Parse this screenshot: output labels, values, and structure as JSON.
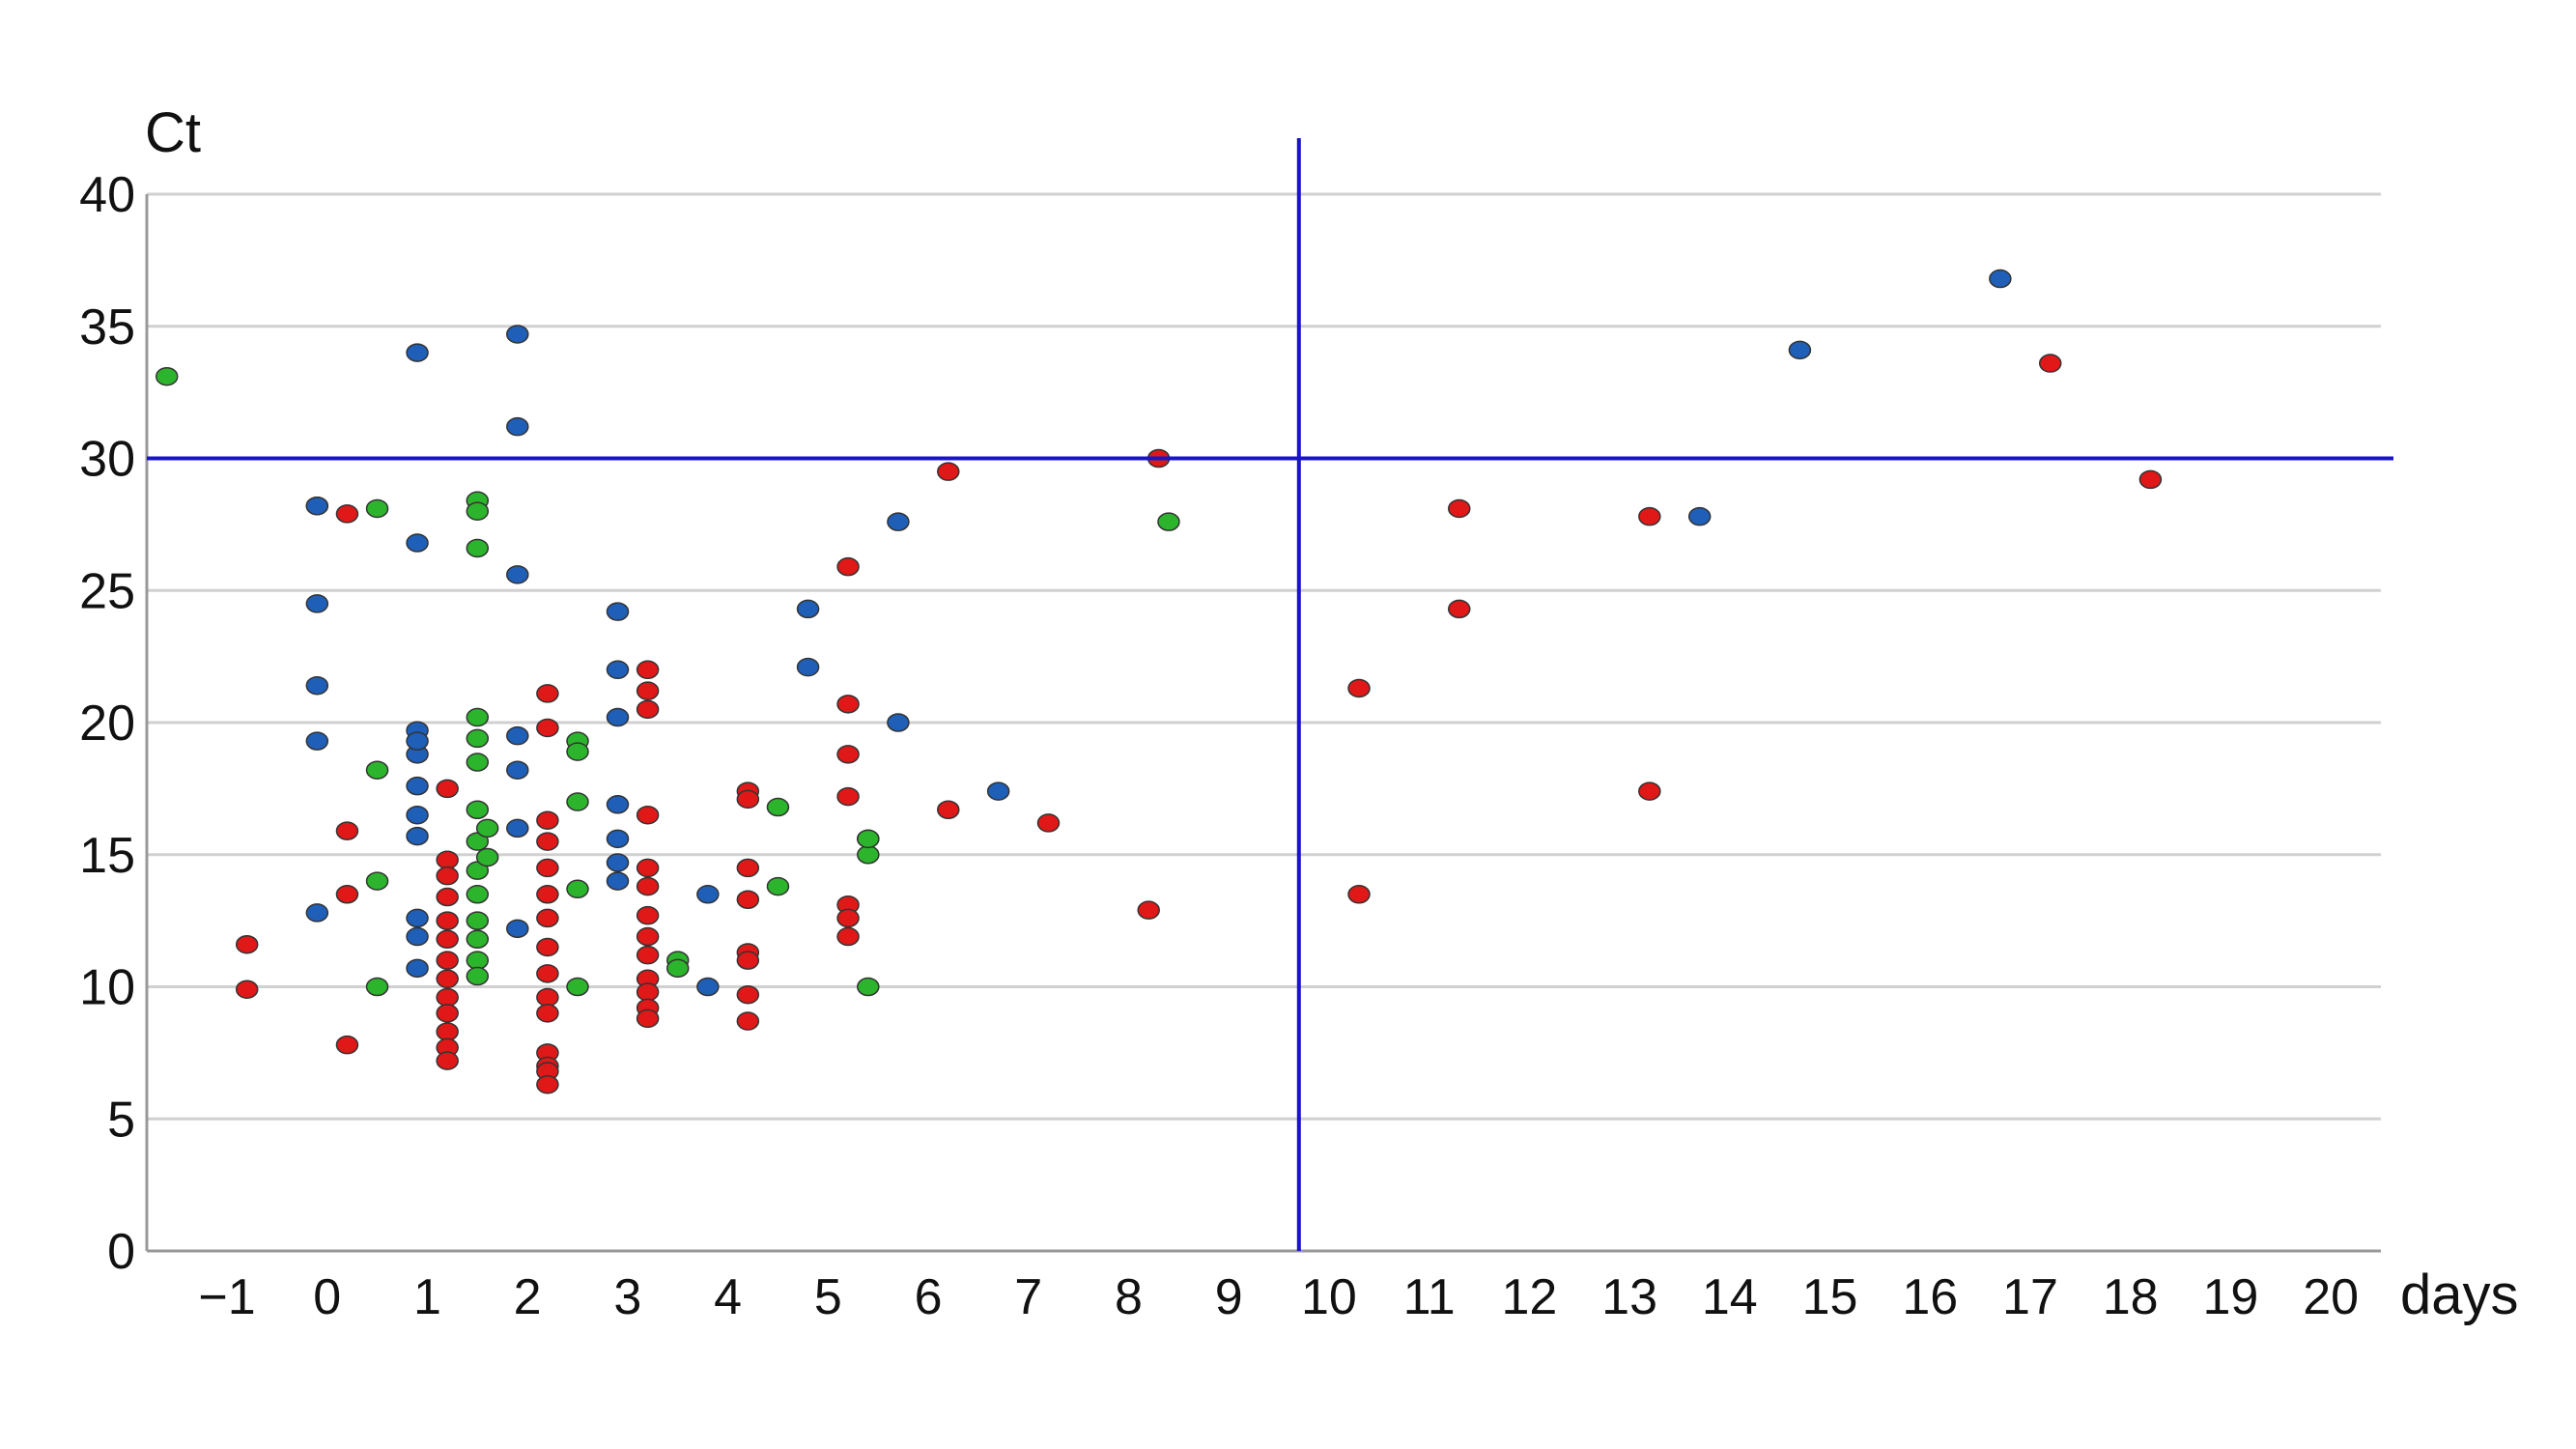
{
  "chart_data": {
    "type": "scatter",
    "title": "",
    "ylabel": "Ct",
    "xlabel": "days",
    "xlim": [
      -1.8,
      20.5
    ],
    "ylim": [
      0,
      40
    ],
    "grid": true,
    "x_ticks": [
      -1,
      0,
      1,
      2,
      3,
      4,
      5,
      6,
      7,
      8,
      9,
      10,
      11,
      12,
      13,
      14,
      15,
      16,
      17,
      18,
      19,
      20
    ],
    "y_ticks": [
      0,
      5,
      10,
      15,
      20,
      25,
      30,
      35,
      40
    ],
    "reference_lines": {
      "horizontal_y": 30,
      "vertical_x": 9.7,
      "color": "#1a14c8"
    },
    "colors": {
      "blue": "#1f5fb8",
      "red": "#e01818",
      "green": "#2cb52c",
      "grid": "#d0d0d0",
      "axis": "#999999"
    },
    "series": [
      {
        "color": "#1f5fb8",
        "x": [
          -0.1,
          -0.1,
          -0.1,
          -0.1,
          -0.1,
          -0.1,
          0.9,
          0.9,
          0.9,
          0.9,
          0.9,
          0.9,
          0.9,
          0.9,
          0.9,
          0.9,
          0.9,
          1.9,
          1.9,
          1.9,
          1.9,
          1.9,
          1.9,
          1.9,
          2.9,
          2.9,
          2.9,
          2.9,
          2.9,
          2.9,
          2.9,
          3.8,
          3.8,
          4.8,
          4.8,
          5.7,
          5.7,
          6.7,
          13.7,
          14.7,
          16.7
        ],
        "y": [
          28.2,
          24.5,
          21.4,
          19.3,
          12.8,
          28.2,
          34.0,
          26.8,
          19.7,
          18.8,
          17.6,
          16.5,
          15.7,
          12.6,
          11.9,
          10.7,
          19.3,
          34.7,
          31.2,
          25.6,
          19.5,
          18.2,
          16.0,
          12.2,
          24.2,
          22.0,
          20.2,
          16.9,
          15.6,
          14.7,
          14.0,
          13.5,
          10.0,
          24.3,
          22.1,
          27.6,
          20.0,
          17.4,
          27.8,
          34.1,
          36.8
        ]
      },
      {
        "color": "#e01818",
        "x": [
          -0.8,
          -0.8,
          0.2,
          0.2,
          0.2,
          0.2,
          1.2,
          1.2,
          1.2,
          1.2,
          1.2,
          1.2,
          1.2,
          1.2,
          1.2,
          1.2,
          1.2,
          1.2,
          1.2,
          2.2,
          2.2,
          2.2,
          2.2,
          2.2,
          2.2,
          2.2,
          2.2,
          2.2,
          2.2,
          2.2,
          2.2,
          2.2,
          2.2,
          2.2,
          3.2,
          3.2,
          3.2,
          3.2,
          3.2,
          3.2,
          3.2,
          3.2,
          3.2,
          3.2,
          3.2,
          3.2,
          3.2,
          4.2,
          4.2,
          4.2,
          4.2,
          4.2,
          4.2,
          4.2,
          4.2,
          5.2,
          5.2,
          5.2,
          5.2,
          5.2,
          5.2,
          5.2,
          6.2,
          6.2,
          7.2,
          8.2,
          8.3,
          10.3,
          10.3,
          11.3,
          11.3,
          13.2,
          13.2,
          17.2,
          18.2
        ],
        "y": [
          11.6,
          9.9,
          27.9,
          15.9,
          13.5,
          7.8,
          17.5,
          14.8,
          14.2,
          13.4,
          12.5,
          11.8,
          11.0,
          10.3,
          9.6,
          9.0,
          8.3,
          7.7,
          7.2,
          21.1,
          19.8,
          16.3,
          15.5,
          14.5,
          13.5,
          12.6,
          11.5,
          10.5,
          9.6,
          9.0,
          7.5,
          7.0,
          6.8,
          6.3,
          22.0,
          21.2,
          20.5,
          16.5,
          14.5,
          13.8,
          12.7,
          11.9,
          11.2,
          10.3,
          9.8,
          9.2,
          8.8,
          17.4,
          17.1,
          14.5,
          13.3,
          11.3,
          11.0,
          9.7,
          8.7,
          25.9,
          20.7,
          18.8,
          17.2,
          13.1,
          12.6,
          11.9,
          29.5,
          16.7,
          16.2,
          12.9,
          30.0,
          21.3,
          13.5,
          28.1,
          24.3,
          27.8,
          17.4,
          33.6,
          29.2
        ]
      },
      {
        "color": "#2cb52c",
        "x": [
          -1.6,
          0.5,
          0.5,
          0.5,
          0.5,
          1.5,
          1.5,
          1.5,
          1.5,
          1.5,
          1.5,
          1.5,
          1.5,
          1.5,
          1.5,
          1.5,
          1.5,
          1.5,
          1.5,
          1.6,
          1.6,
          2.5,
          2.5,
          2.5,
          2.5,
          2.5,
          3.5,
          3.5,
          4.5,
          4.5,
          5.4,
          5.4,
          5.4,
          5.4,
          8.4
        ],
        "y": [
          33.1,
          28.1,
          18.2,
          14.0,
          10.0,
          28.4,
          28.0,
          26.6,
          20.2,
          19.4,
          18.5,
          16.7,
          15.5,
          14.4,
          13.5,
          12.5,
          11.8,
          11.0,
          10.4,
          16.0,
          14.9,
          19.3,
          18.9,
          17.0,
          13.7,
          10.0,
          11.0,
          10.7,
          16.8,
          13.8,
          15.6,
          15.0,
          10.0,
          15.6,
          27.6
        ]
      }
    ]
  }
}
